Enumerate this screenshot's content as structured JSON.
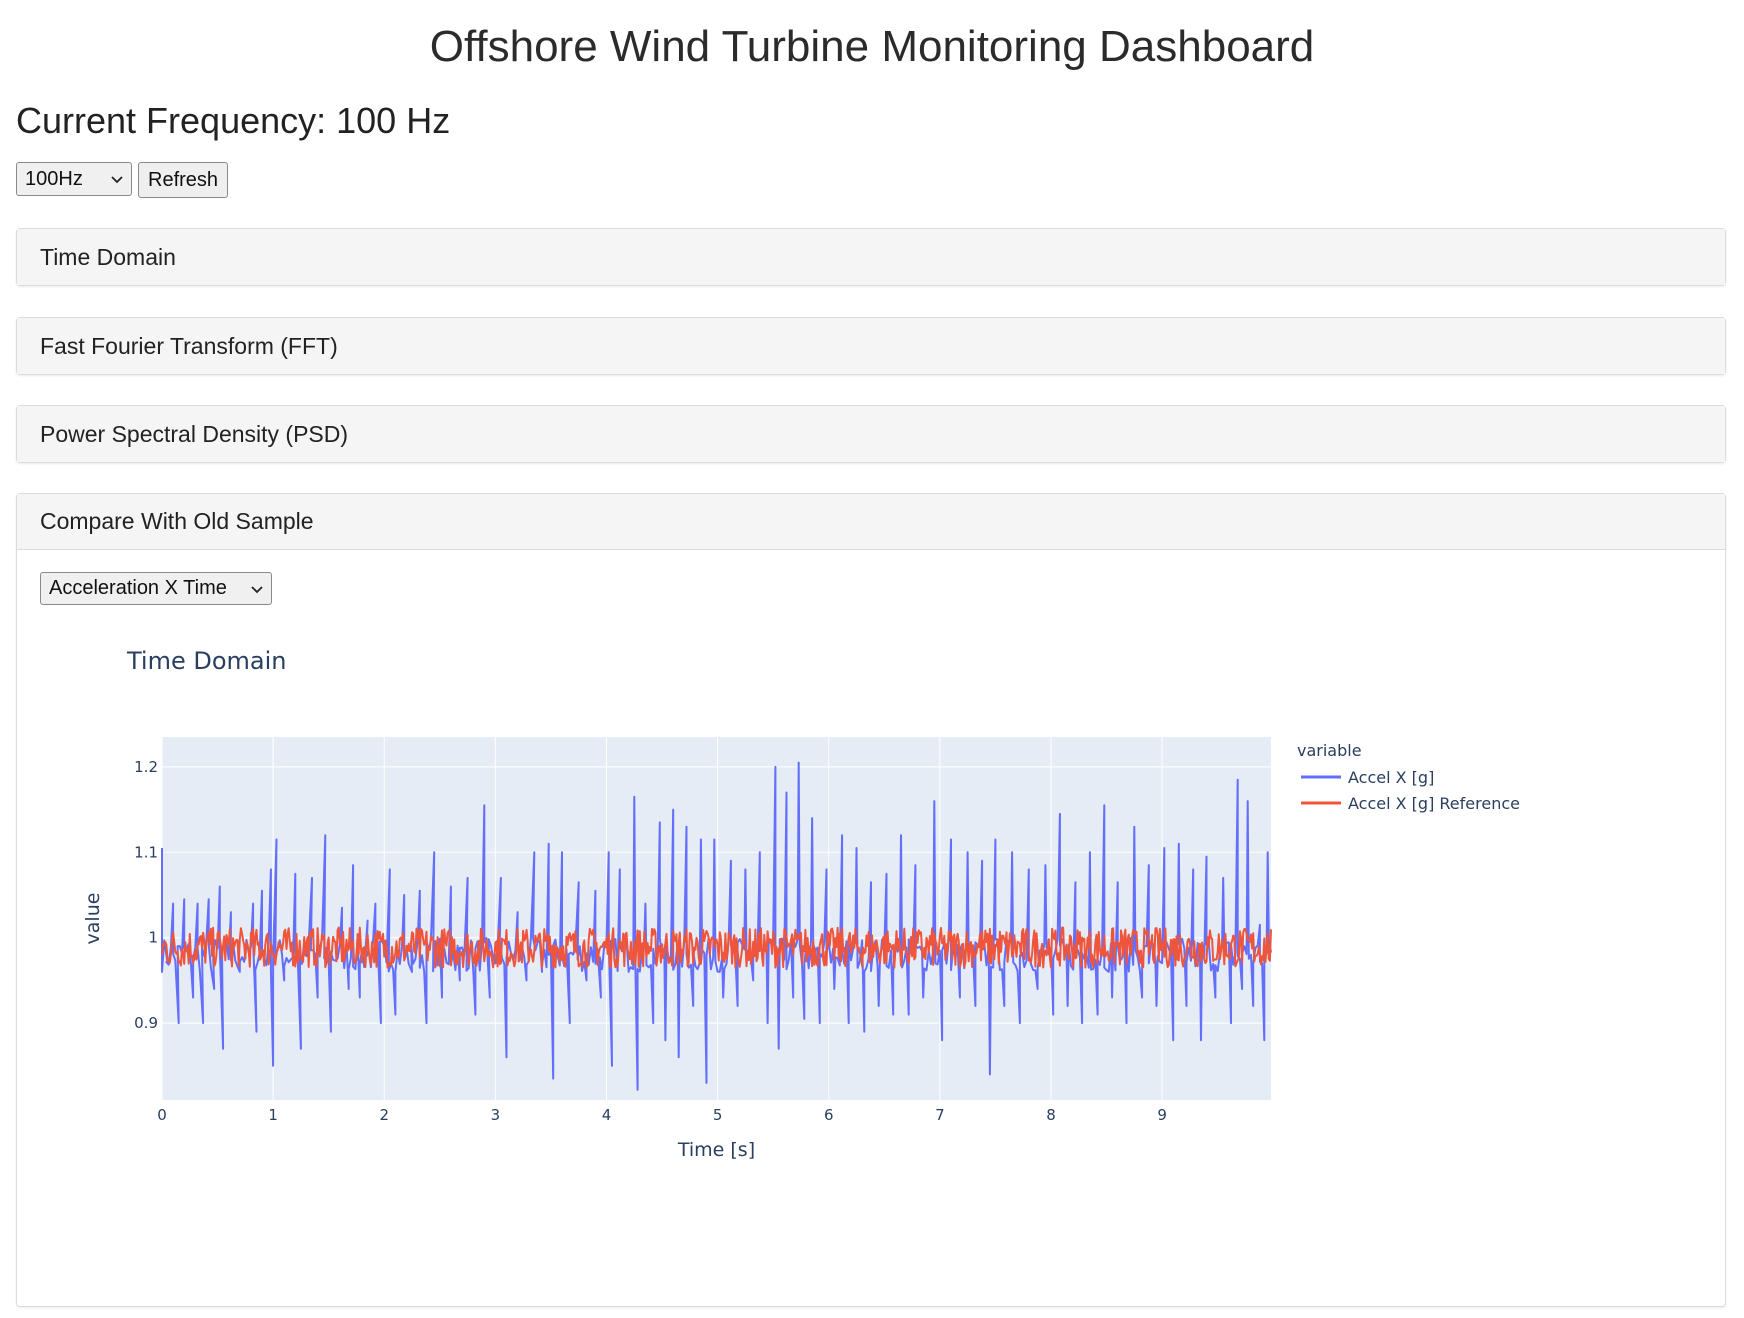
{
  "header": {
    "title": "Offshore Wind Turbine Monitoring Dashboard"
  },
  "frequency": {
    "heading": "Current Frequency: 100 Hz",
    "select_value": "100Hz",
    "refresh_label": "Refresh"
  },
  "panels": [
    {
      "label": "Time Domain"
    },
    {
      "label": "Fast Fourier Transform (FFT)"
    },
    {
      "label": "Power Spectral Density (PSD)"
    },
    {
      "label": "Compare With Old Sample"
    }
  ],
  "compare": {
    "select_value": "Acceleration X Time"
  },
  "icons": {
    "select_chevron": "chevron-down-icon"
  },
  "colors": {
    "series1": "#636efa",
    "series2": "#ef553b",
    "plot_bg": "#e5ecf6",
    "title_text": "#2a3f5f"
  },
  "chart_data": {
    "type": "line",
    "title": "Time Domain",
    "xlabel": "Time [s]",
    "ylabel": "value",
    "xlim": [
      0,
      9.98
    ],
    "ylim": [
      0.81,
      1.235
    ],
    "x_ticks": [
      0,
      1,
      2,
      3,
      4,
      5,
      6,
      7,
      8,
      9
    ],
    "y_ticks": [
      0.9,
      1,
      1.1,
      1.2
    ],
    "y_tick_labels": [
      "0.9",
      "1",
      "1.1",
      "1.2"
    ],
    "legend_title": "variable",
    "legend_position": "right",
    "series": [
      {
        "name": "Accel X [g]",
        "color": "#636efa",
        "baseline": 0.98,
        "spikes": [
          [
            0.0,
            1.105
          ],
          [
            0.05,
            0.97
          ],
          [
            0.1,
            1.04
          ],
          [
            0.15,
            0.9
          ],
          [
            0.2,
            1.045
          ],
          [
            0.28,
            0.93
          ],
          [
            0.32,
            1.04
          ],
          [
            0.37,
            0.9
          ],
          [
            0.42,
            1.045
          ],
          [
            0.47,
            0.94
          ],
          [
            0.52,
            1.06
          ],
          [
            0.55,
            0.87
          ],
          [
            0.62,
            1.03
          ],
          [
            0.7,
            0.96
          ],
          [
            0.82,
            1.04
          ],
          [
            0.85,
            0.89
          ],
          [
            0.9,
            1.055
          ],
          [
            0.98,
            1.08
          ],
          [
            1.0,
            0.85
          ],
          [
            1.03,
            1.115
          ],
          [
            1.1,
            0.95
          ],
          [
            1.2,
            1.075
          ],
          [
            1.25,
            0.87
          ],
          [
            1.35,
            1.07
          ],
          [
            1.4,
            0.93
          ],
          [
            1.47,
            1.12
          ],
          [
            1.52,
            0.89
          ],
          [
            1.62,
            1.035
          ],
          [
            1.68,
            0.94
          ],
          [
            1.72,
            1.085
          ],
          [
            1.78,
            0.93
          ],
          [
            1.85,
            1.02
          ],
          [
            1.92,
            1.04
          ],
          [
            1.97,
            0.9
          ],
          [
            2.05,
            1.08
          ],
          [
            2.1,
            0.91
          ],
          [
            2.18,
            1.05
          ],
          [
            2.25,
            0.96
          ],
          [
            2.32,
            1.055
          ],
          [
            2.38,
            0.9
          ],
          [
            2.45,
            1.1
          ],
          [
            2.52,
            0.93
          ],
          [
            2.6,
            1.06
          ],
          [
            2.68,
            0.95
          ],
          [
            2.75,
            1.07
          ],
          [
            2.82,
            0.91
          ],
          [
            2.9,
            1.155
          ],
          [
            2.95,
            0.93
          ],
          [
            3.05,
            1.07
          ],
          [
            3.1,
            0.86
          ],
          [
            3.2,
            1.03
          ],
          [
            3.28,
            0.95
          ],
          [
            3.35,
            1.1
          ],
          [
            3.42,
            0.96
          ],
          [
            3.48,
            1.11
          ],
          [
            3.52,
            0.835
          ],
          [
            3.6,
            1.1
          ],
          [
            3.67,
            0.9
          ],
          [
            3.75,
            1.065
          ],
          [
            3.82,
            0.95
          ],
          [
            3.9,
            1.055
          ],
          [
            3.95,
            0.93
          ],
          [
            4.02,
            1.1
          ],
          [
            4.05,
            0.85
          ],
          [
            4.12,
            1.08
          ],
          [
            4.2,
            0.96
          ],
          [
            4.25,
            1.165
          ],
          [
            4.28,
            0.822
          ],
          [
            4.35,
            1.04
          ],
          [
            4.42,
            0.9
          ],
          [
            4.48,
            1.135
          ],
          [
            4.53,
            0.88
          ],
          [
            4.6,
            1.15
          ],
          [
            4.65,
            0.86
          ],
          [
            4.72,
            1.13
          ],
          [
            4.78,
            0.92
          ],
          [
            4.85,
            1.115
          ],
          [
            4.9,
            0.83
          ],
          [
            4.97,
            1.115
          ],
          [
            5.05,
            0.93
          ],
          [
            5.12,
            1.09
          ],
          [
            5.18,
            0.92
          ],
          [
            5.25,
            1.08
          ],
          [
            5.32,
            0.95
          ],
          [
            5.38,
            1.1
          ],
          [
            5.45,
            0.9
          ],
          [
            5.52,
            1.2
          ],
          [
            5.55,
            0.87
          ],
          [
            5.62,
            1.17
          ],
          [
            5.68,
            0.93
          ],
          [
            5.73,
            1.205
          ],
          [
            5.78,
            0.905
          ],
          [
            5.85,
            1.14
          ],
          [
            5.92,
            0.9
          ],
          [
            5.98,
            1.08
          ],
          [
            6.05,
            0.94
          ],
          [
            6.12,
            1.12
          ],
          [
            6.18,
            0.9
          ],
          [
            6.25,
            1.105
          ],
          [
            6.32,
            0.89
          ],
          [
            6.38,
            1.065
          ],
          [
            6.45,
            0.92
          ],
          [
            6.52,
            1.075
          ],
          [
            6.58,
            0.91
          ],
          [
            6.65,
            1.12
          ],
          [
            6.72,
            0.91
          ],
          [
            6.78,
            1.085
          ],
          [
            6.85,
            0.93
          ],
          [
            6.95,
            1.16
          ],
          [
            7.02,
            0.88
          ],
          [
            7.1,
            1.115
          ],
          [
            7.18,
            0.93
          ],
          [
            7.25,
            1.1
          ],
          [
            7.32,
            0.92
          ],
          [
            7.38,
            1.09
          ],
          [
            7.45,
            0.84
          ],
          [
            7.5,
            1.115
          ],
          [
            7.58,
            0.92
          ],
          [
            7.65,
            1.1
          ],
          [
            7.72,
            0.9
          ],
          [
            7.8,
            1.08
          ],
          [
            7.88,
            0.94
          ],
          [
            7.95,
            1.085
          ],
          [
            8.02,
            0.91
          ],
          [
            8.08,
            1.145
          ],
          [
            8.15,
            0.92
          ],
          [
            8.22,
            1.065
          ],
          [
            8.28,
            0.9
          ],
          [
            8.35,
            1.1
          ],
          [
            8.42,
            0.91
          ],
          [
            8.48,
            1.155
          ],
          [
            8.55,
            0.93
          ],
          [
            8.6,
            1.065
          ],
          [
            8.68,
            0.9
          ],
          [
            8.75,
            1.13
          ],
          [
            8.82,
            0.93
          ],
          [
            8.88,
            1.085
          ],
          [
            8.95,
            0.92
          ],
          [
            9.02,
            1.105
          ],
          [
            9.1,
            0.88
          ],
          [
            9.15,
            1.11
          ],
          [
            9.22,
            0.92
          ],
          [
            9.28,
            1.08
          ],
          [
            9.35,
            0.88
          ],
          [
            9.4,
            1.095
          ],
          [
            9.48,
            0.93
          ],
          [
            9.55,
            1.07
          ],
          [
            9.62,
            0.9
          ],
          [
            9.68,
            1.185
          ],
          [
            9.72,
            0.94
          ],
          [
            9.77,
            1.16
          ],
          [
            9.82,
            0.92
          ],
          [
            9.88,
            1.015
          ],
          [
            9.92,
            0.88
          ],
          [
            9.95,
            1.1
          ]
        ]
      },
      {
        "name": "Accel X [g] Reference",
        "color": "#ef553b",
        "baseline": 0.985,
        "band": [
          0.965,
          1.012
        ]
      }
    ]
  }
}
